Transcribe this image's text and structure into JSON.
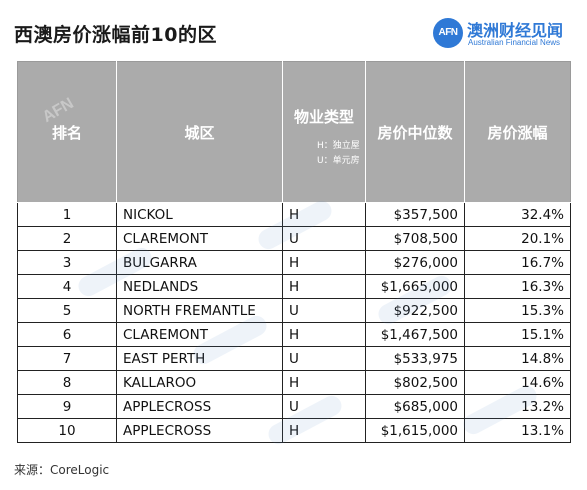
{
  "title": "西澳房价涨幅前10的区",
  "logo": {
    "mark": "AFN",
    "name_cn": "澳洲财经见闻",
    "name_en": "Australian Financial News"
  },
  "table": {
    "headers": {
      "rank": "排名",
      "area": "城区",
      "type": "物业类型",
      "type_note_h": "H：独立屋",
      "type_note_u": "U：单元房",
      "price": "房价中位数",
      "change": "房价涨幅"
    },
    "rows": [
      {
        "rank": "1",
        "area": "NICKOL",
        "type": "H",
        "price": "$357,500",
        "change": "32.4%"
      },
      {
        "rank": "2",
        "area": "CLAREMONT",
        "type": "U",
        "price": "$708,500",
        "change": "20.1%"
      },
      {
        "rank": "3",
        "area": "BULGARRA",
        "type": "H",
        "price": "$276,000",
        "change": "16.7%"
      },
      {
        "rank": "4",
        "area": "NEDLANDS",
        "type": "H",
        "price": "$1,665,000",
        "change": "16.3%"
      },
      {
        "rank": "5",
        "area": "NORTH FREMANTLE",
        "type": "U",
        "price": "$922,500",
        "change": "15.3%"
      },
      {
        "rank": "6",
        "area": "CLAREMONT",
        "type": "H",
        "price": "$1,467,500",
        "change": "15.1%"
      },
      {
        "rank": "7",
        "area": "EAST PERTH",
        "type": "U",
        "price": "$533,975",
        "change": "14.8%"
      },
      {
        "rank": "8",
        "area": "KALLAROO",
        "type": "H",
        "price": "$802,500",
        "change": "14.6%"
      },
      {
        "rank": "9",
        "area": "APPLECROSS",
        "type": "U",
        "price": "$685,000",
        "change": "13.2%"
      },
      {
        "rank": "10",
        "area": "APPLECROSS",
        "type": "H",
        "price": "$1,615,000",
        "change": "13.1%"
      }
    ]
  },
  "source": "来源：CoreLogic",
  "colors": {
    "header_bg": "#ababab",
    "brand_blue": "#2f79d6"
  }
}
